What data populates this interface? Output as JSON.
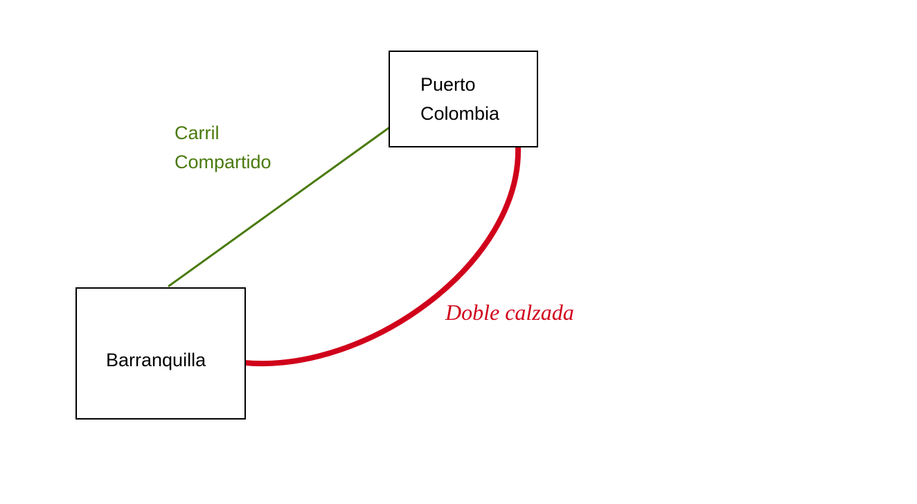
{
  "diagram": {
    "nodes": {
      "puerto_colombia": {
        "lines": [
          "Puerto",
          "Colombia"
        ]
      },
      "barranquilla": {
        "label": "Barranquilla"
      }
    },
    "edges": {
      "shared_lane": {
        "label_lines": [
          "Carril",
          "Compartido"
        ],
        "color": "#4a7a0c"
      },
      "double_road": {
        "label": "Doble calzada",
        "color": "#d0021b"
      }
    }
  }
}
